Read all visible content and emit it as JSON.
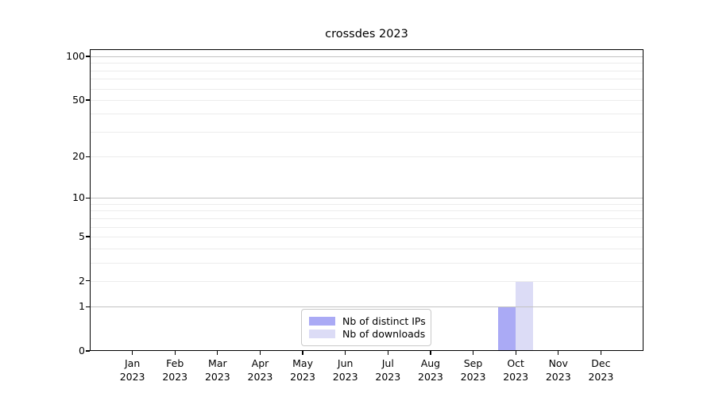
{
  "figure": {
    "title": "crossdes 2023"
  },
  "chart_data": {
    "type": "bar",
    "title": "crossdes 2023",
    "categories": [
      {
        "month": "Jan",
        "year": "2023"
      },
      {
        "month": "Feb",
        "year": "2023"
      },
      {
        "month": "Mar",
        "year": "2023"
      },
      {
        "month": "Apr",
        "year": "2023"
      },
      {
        "month": "May",
        "year": "2023"
      },
      {
        "month": "Jun",
        "year": "2023"
      },
      {
        "month": "Jul",
        "year": "2023"
      },
      {
        "month": "Aug",
        "year": "2023"
      },
      {
        "month": "Sep",
        "year": "2023"
      },
      {
        "month": "Oct",
        "year": "2023"
      },
      {
        "month": "Nov",
        "year": "2023"
      },
      {
        "month": "Dec",
        "year": "2023"
      }
    ],
    "series": [
      {
        "name": "Nb of distinct IPs",
        "color": "#aaaaf5",
        "values": [
          0,
          0,
          0,
          0,
          0,
          0,
          0,
          0,
          0,
          1,
          0,
          0
        ]
      },
      {
        "name": "Nb of downloads",
        "color": "#dcdcf6",
        "values": [
          0,
          0,
          0,
          0,
          0,
          0,
          0,
          0,
          0,
          2,
          0,
          0
        ]
      }
    ],
    "y_axis": {
      "scale": "log1p",
      "tick_values": [
        0,
        1,
        2,
        5,
        10,
        20,
        50,
        100
      ],
      "tick_labels": [
        "0",
        "1",
        "2",
        "5",
        "10",
        "20",
        "50",
        "100"
      ],
      "major_gridlines": [
        1,
        10,
        100
      ],
      "minor_gridlines": [
        2,
        3,
        4,
        5,
        6,
        7,
        8,
        9,
        20,
        30,
        40,
        50,
        60,
        70,
        80,
        90
      ],
      "ylim": [
        0,
        112
      ]
    },
    "xlabel": "",
    "ylabel": "",
    "grid": true,
    "legend_position": "lower center"
  },
  "colors": {
    "bar_distinct_ips": "#aaaaf5",
    "bar_downloads": "#dcdcf6",
    "grid_major": "#c2c2c2",
    "grid_minor": "#ececec",
    "axis": "#000000",
    "background": "#ffffff"
  }
}
